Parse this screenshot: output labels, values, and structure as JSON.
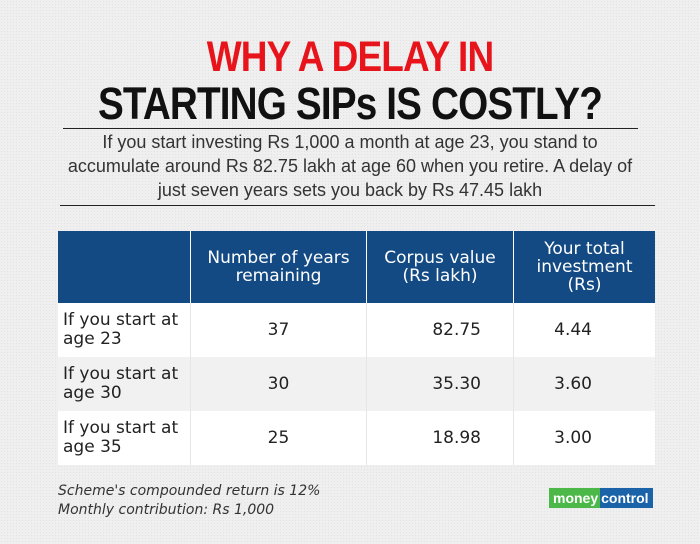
{
  "title": {
    "line1": "WHY A DELAY IN",
    "line2": "STARTING SIPs IS COSTLY?"
  },
  "subtitle": "If you start investing Rs 1,000 a month at age 23, you stand to accumulate around Rs 82.75 lakh at age 60 when you retire. A delay of just seven years sets you back by Rs 47.45 lakh",
  "table": {
    "headers": [
      "",
      "Number of years remaining",
      "Corpus value (Rs lakh)",
      "Your total investment (Rs)"
    ],
    "rows": [
      [
        "If you start at age 23",
        "37",
        "82.75",
        "4.44"
      ],
      [
        "If you start at age 30",
        "30",
        "35.30",
        "3.60"
      ],
      [
        "If you start at age 35",
        "25",
        "18.98",
        "3.00"
      ]
    ]
  },
  "notes": [
    "Scheme's compounded return is 12%",
    "Monthly contribution: Rs 1,000"
  ],
  "logo": {
    "part1": "money",
    "part2": "control"
  },
  "colors": {
    "title_red": "#e8141b",
    "header_blue": "#134a84",
    "logo_green": "#4cb848",
    "logo_blue": "#1a63a8"
  }
}
